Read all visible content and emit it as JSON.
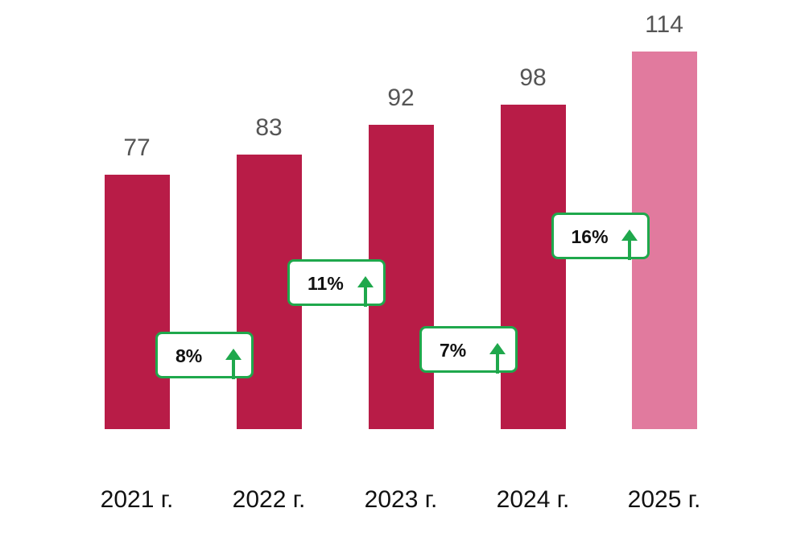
{
  "chart_data": {
    "type": "bar",
    "categories": [
      "2021 г.",
      "2022 г.",
      "2023 г.",
      "2024 г.",
      "2025 г."
    ],
    "values": [
      77,
      83,
      92,
      98,
      114
    ],
    "bar_colors": [
      "#b81c47",
      "#b81c47",
      "#b81c47",
      "#b81c47",
      "#e17a9e"
    ],
    "growth_labels": [
      "8%",
      "11%",
      "7%",
      "16%"
    ],
    "growth_direction": "up",
    "growth_color": "#1fa84c",
    "ylim": [
      0,
      114
    ],
    "grid": false
  }
}
